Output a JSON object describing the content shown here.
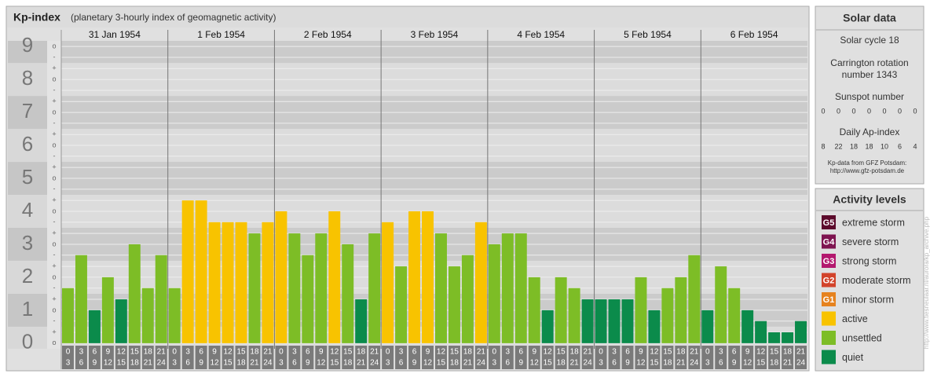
{
  "chart_data": {
    "type": "bar",
    "title": "Kp-index",
    "subtitle": "(planetary 3-hourly index of geomagnetic activity)",
    "ylim": [
      -0.17,
      9.17
    ],
    "yticks": [
      0,
      1,
      2,
      3,
      4,
      5,
      6,
      7,
      8,
      9
    ],
    "yticks_minor": [
      {
        "value": 0,
        "label": "o"
      },
      {
        "value": 0.33,
        "label": "+"
      },
      {
        "value": 0.67,
        "label": "-"
      },
      {
        "value": 1,
        "label": "o"
      },
      {
        "value": 1.33,
        "label": "+"
      },
      {
        "value": 1.67,
        "label": "-"
      },
      {
        "value": 2,
        "label": "o"
      },
      {
        "value": 2.33,
        "label": "+"
      },
      {
        "value": 2.67,
        "label": "-"
      },
      {
        "value": 3,
        "label": "o"
      },
      {
        "value": 3.33,
        "label": "+"
      },
      {
        "value": 3.67,
        "label": "-"
      },
      {
        "value": 4,
        "label": "o"
      },
      {
        "value": 4.33,
        "label": "+"
      },
      {
        "value": 4.67,
        "label": "-"
      },
      {
        "value": 5,
        "label": "o"
      },
      {
        "value": 5.33,
        "label": "+"
      },
      {
        "value": 5.67,
        "label": "-"
      },
      {
        "value": 6,
        "label": "o"
      },
      {
        "value": 6.33,
        "label": "+"
      },
      {
        "value": 6.67,
        "label": "-"
      },
      {
        "value": 7,
        "label": "o"
      },
      {
        "value": 7.33,
        "label": "+"
      },
      {
        "value": 7.67,
        "label": "-"
      },
      {
        "value": 8,
        "label": "o"
      },
      {
        "value": 8.33,
        "label": "+"
      },
      {
        "value": 8.67,
        "label": "-"
      },
      {
        "value": 9,
        "label": "o"
      }
    ],
    "hours": [
      [
        0,
        3
      ],
      [
        3,
        6
      ],
      [
        6,
        9
      ],
      [
        9,
        12
      ],
      [
        12,
        15
      ],
      [
        15,
        18
      ],
      [
        18,
        21
      ],
      [
        21,
        24
      ]
    ],
    "days": [
      {
        "name": "31 Jan 1954",
        "values": [
          1.67,
          2.67,
          1,
          2,
          1.33,
          3,
          1.67,
          2.67
        ],
        "colors": [
          "#7dbd26",
          "#7dbd26",
          "#0b8b4b",
          "#7dbd26",
          "#0b8b4b",
          "#7dbd26",
          "#7dbd26",
          "#7dbd26"
        ]
      },
      {
        "name": "1 Feb 1954",
        "values": [
          1.67,
          4.33,
          4.33,
          3.67,
          3.67,
          3.67,
          3.33,
          3.67
        ],
        "colors": [
          "#7dbd26",
          "#f8c300",
          "#f8c300",
          "#f8c300",
          "#f8c300",
          "#f8c300",
          "#7dbd26",
          "#f8c300"
        ]
      },
      {
        "name": "2 Feb 1954",
        "values": [
          4,
          3.33,
          2.67,
          3.33,
          4,
          3,
          1.33,
          3.33
        ],
        "colors": [
          "#f8c300",
          "#7dbd26",
          "#7dbd26",
          "#7dbd26",
          "#f8c300",
          "#7dbd26",
          "#0b8b4b",
          "#7dbd26"
        ]
      },
      {
        "name": "3 Feb 1954",
        "values": [
          3.67,
          2.33,
          4,
          4,
          3.33,
          2.33,
          2.67,
          3.67
        ],
        "colors": [
          "#f8c300",
          "#7dbd26",
          "#f8c300",
          "#f8c300",
          "#7dbd26",
          "#7dbd26",
          "#7dbd26",
          "#f8c300"
        ]
      },
      {
        "name": "4 Feb 1954",
        "values": [
          3,
          3.33,
          3.33,
          2,
          1,
          2,
          1.67,
          1.33
        ],
        "colors": [
          "#7dbd26",
          "#7dbd26",
          "#7dbd26",
          "#7dbd26",
          "#0b8b4b",
          "#7dbd26",
          "#7dbd26",
          "#0b8b4b"
        ]
      },
      {
        "name": "5 Feb 1954",
        "values": [
          1.33,
          1.33,
          1.33,
          2,
          1,
          1.67,
          2,
          2.67
        ],
        "colors": [
          "#0b8b4b",
          "#0b8b4b",
          "#0b8b4b",
          "#7dbd26",
          "#0b8b4b",
          "#7dbd26",
          "#7dbd26",
          "#7dbd26"
        ]
      },
      {
        "name": "6 Feb 1954",
        "values": [
          1,
          2.33,
          1.67,
          1,
          0.67,
          0.33,
          0.33,
          0.67
        ],
        "colors": [
          "#0b8b4b",
          "#7dbd26",
          "#7dbd26",
          "#0b8b4b",
          "#0b8b4b",
          "#0b8b4b",
          "#0b8b4b",
          "#0b8b4b"
        ]
      }
    ]
  },
  "solar_data": {
    "title": "Solar data",
    "cycle": "Solar cycle 18",
    "carrington": [
      "Carrington rotation",
      "number 1343"
    ],
    "sunspot_label": "Sunspot number",
    "sunspot": [
      0,
      0,
      0,
      0,
      0,
      0,
      0
    ],
    "ap_label": "Daily Ap-index",
    "ap": [
      8,
      22,
      18,
      18,
      10,
      6,
      4
    ],
    "source": [
      "Kp-data from GFZ Potsdam:",
      "http://www.gfz-potsdam.de"
    ]
  },
  "activity_levels": {
    "title": "Activity levels",
    "items": [
      {
        "code": "G5",
        "name": "extreme storm",
        "color": "#5c0b2c"
      },
      {
        "code": "G4",
        "name": "severe storm",
        "color": "#7e1450"
      },
      {
        "code": "G3",
        "name": "strong storm",
        "color": "#b3186e"
      },
      {
        "code": "G2",
        "name": "moderate storm",
        "color": "#d2432a"
      },
      {
        "code": "G1",
        "name": "minor storm",
        "color": "#e6821e"
      },
      {
        "name": "active",
        "color": "#f8c300"
      },
      {
        "name": "unsettled",
        "color": "#7dbd26"
      },
      {
        "name": "quiet",
        "color": "#0b8b4b"
      }
    ]
  },
  "watermark": "http://www.tiesneulaar.nl/aurora/kp_archive.php"
}
